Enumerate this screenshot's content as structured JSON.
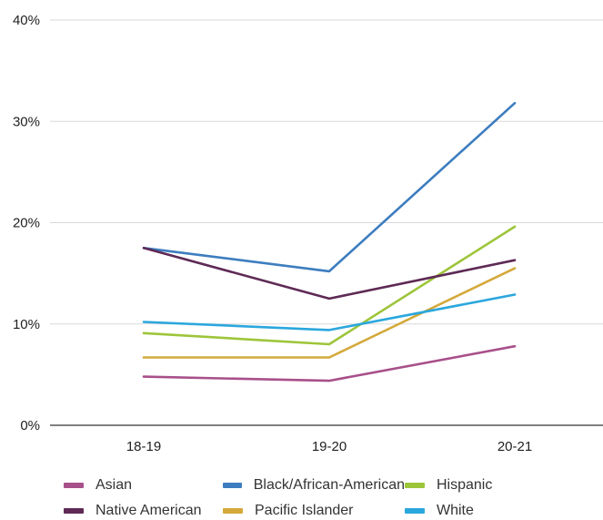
{
  "chart_data": {
    "type": "line",
    "title": "",
    "xlabel": "",
    "ylabel": "",
    "categories": [
      "18-19",
      "19-20",
      "20-21"
    ],
    "ylim": [
      0,
      40
    ],
    "y_ticks": [
      0,
      10,
      20,
      30,
      40
    ],
    "y_tick_labels": [
      "0%",
      "10%",
      "20%",
      "30%",
      "40%"
    ],
    "grid": true,
    "legend_position": "bottom",
    "series": [
      {
        "name": "Asian",
        "color": "#a8508a",
        "values": [
          4.8,
          4.4,
          7.8
        ]
      },
      {
        "name": "Black/African-American",
        "color": "#3d7dbf",
        "values": [
          17.5,
          15.2,
          31.8
        ]
      },
      {
        "name": "Hispanic",
        "color": "#9dc53a",
        "values": [
          9.1,
          8.0,
          19.6
        ]
      },
      {
        "name": "Native American",
        "color": "#5e2a55",
        "values": [
          17.5,
          12.5,
          16.3
        ]
      },
      {
        "name": "Pacific Islander",
        "color": "#d4a93a",
        "values": [
          6.7,
          6.7,
          15.5
        ]
      },
      {
        "name": "White",
        "color": "#2aa7dd",
        "values": [
          10.2,
          9.4,
          12.9
        ]
      }
    ]
  }
}
